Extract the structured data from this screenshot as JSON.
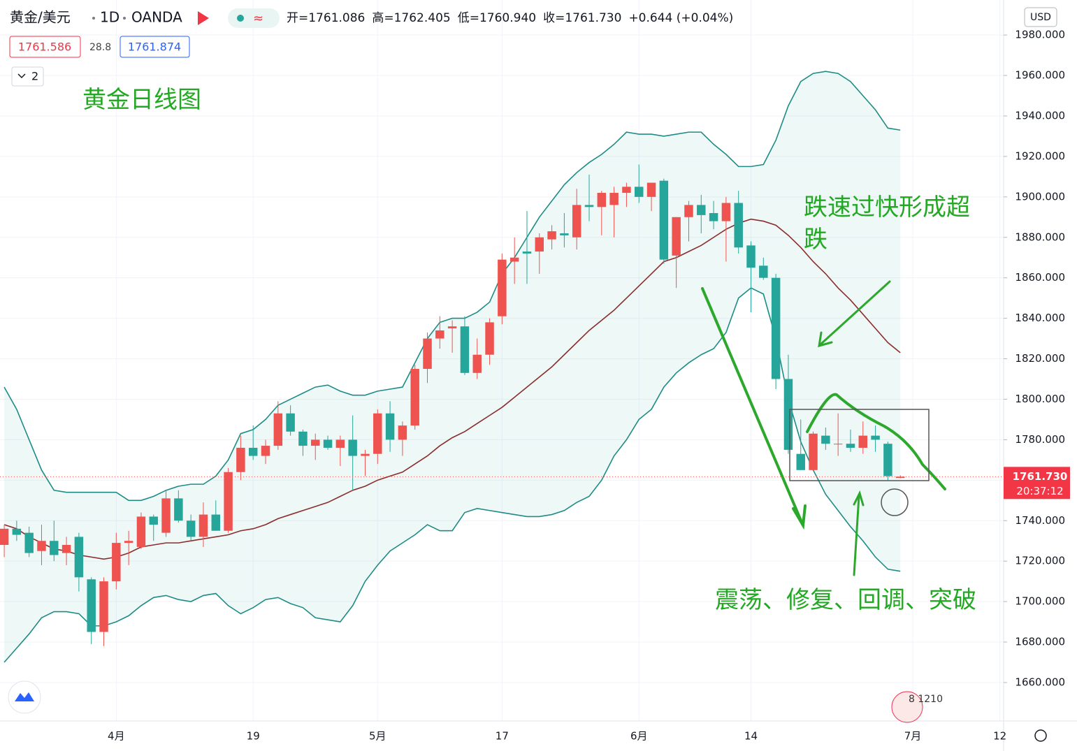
{
  "header": {
    "symbol": "黄金/美元",
    "interval": "1D",
    "exchange": "OANDA",
    "ohlc": [
      "开=1761.086",
      "高=1762.405",
      "低=1760.940",
      "收=1761.730"
    ],
    "change": "+0.644 (+0.04%)",
    "bid": "1761.586",
    "spread": "28.8",
    "ask": "1761.874",
    "indicators": "2",
    "currency": "USD",
    "footer": "8 1210"
  },
  "chart_data": {
    "type": "candlestick",
    "title": "黄金日线图",
    "annotations": [
      "跌速过快形成超跌",
      "震荡、修复、回调、突破"
    ],
    "up_color": "#ef5350",
    "down_color": "#26a69a",
    "open": [
      1728,
      1736,
      1734,
      1725,
      1730,
      1724,
      1732,
      1711,
      1685,
      1710,
      1729,
      1727,
      1742,
      1734,
      1751,
      1740,
      1732,
      1743,
      1735,
      1764,
      1776,
      1772,
      1777,
      1793,
      1784,
      1777,
      1780,
      1776,
      1780,
      1772,
      1773,
      1793,
      1780,
      1787,
      1815,
      1830,
      1835,
      1836,
      1813,
      1822,
      1841,
      1868,
      1873,
      1873,
      1879,
      1882,
      1880,
      1896,
      1895,
      1896,
      1902,
      1905,
      1900,
      1908,
      1871,
      1890,
      1896,
      1892,
      1888,
      1897,
      1876,
      1866,
      1860,
      1810,
      1773,
      1765,
      1782,
      1778,
      1778,
      1776,
      1782,
      1778,
      1761.086
    ],
    "high": [
      1738,
      1740,
      1737,
      1738,
      1740,
      1732,
      1734,
      1712,
      1712,
      1734,
      1735,
      1744,
      1743,
      1755,
      1755,
      1743,
      1749,
      1750,
      1766,
      1782,
      1787,
      1780,
      1799,
      1797,
      1785,
      1783,
      1782,
      1782,
      1792,
      1775,
      1795,
      1799,
      1789,
      1817,
      1833,
      1841,
      1839,
      1841,
      1830,
      1840,
      1872,
      1880,
      1893,
      1882,
      1886,
      1892,
      1904,
      1911,
      1903,
      1905,
      1907,
      1916,
      1907,
      1909,
      1890,
      1898,
      1901,
      1898,
      1900,
      1903,
      1878,
      1870,
      1862,
      1822,
      1790,
      1784,
      1786,
      1793,
      1785,
      1789,
      1787,
      1779,
      1762.405
    ],
    "low": [
      1722,
      1730,
      1722,
      1718,
      1720,
      1718,
      1705,
      1679,
      1678,
      1706,
      1718,
      1726,
      1730,
      1732,
      1739,
      1730,
      1727,
      1735,
      1734,
      1760,
      1770,
      1768,
      1775,
      1782,
      1772,
      1770,
      1775,
      1767,
      1755,
      1762,
      1768,
      1774,
      1772,
      1785,
      1808,
      1825,
      1823,
      1812,
      1810,
      1817,
      1837,
      1857,
      1857,
      1862,
      1874,
      1875,
      1874,
      1888,
      1881,
      1880,
      1895,
      1897,
      1893,
      1867,
      1855,
      1878,
      1882,
      1884,
      1868,
      1872,
      1843,
      1859,
      1805,
      1773,
      1765,
      1765,
      1775,
      1772,
      1774,
      1773,
      1774,
      1760,
      1760.94
    ],
    "close": [
      1736,
      1733,
      1724,
      1730,
      1723,
      1728,
      1712,
      1685,
      1710,
      1729,
      1730,
      1742,
      1738,
      1751,
      1740,
      1732,
      1743,
      1735,
      1764,
      1776,
      1772,
      1777,
      1793,
      1784,
      1777,
      1780,
      1776,
      1780,
      1772,
      1773,
      1793,
      1780,
      1787,
      1815,
      1830,
      1834,
      1836,
      1813,
      1822,
      1838,
      1869,
      1870,
      1872,
      1880,
      1883,
      1881,
      1896,
      1895,
      1902,
      1902,
      1905,
      1900,
      1907,
      1869,
      1890,
      1896,
      1891,
      1888,
      1897,
      1875,
      1865,
      1860,
      1810,
      1775,
      1765,
      1783,
      1778,
      1778,
      1776,
      1782,
      1780,
      1762,
      1761.73
    ],
    "series": [
      {
        "name": "upper",
        "color": "#1e8c86",
        "values": [
          1806,
          1795,
          1780,
          1765,
          1755,
          1754,
          1754,
          1754,
          1754,
          1754,
          1750,
          1750,
          1752,
          1755,
          1757,
          1758,
          1758,
          1762,
          1770,
          1783,
          1785,
          1790,
          1797,
          1800,
          1803,
          1806,
          1807,
          1804,
          1802,
          1802,
          1804,
          1805,
          1806,
          1818,
          1830,
          1838,
          1840,
          1840,
          1843,
          1848,
          1862,
          1870,
          1880,
          1890,
          1898,
          1906,
          1912,
          1917,
          1921,
          1926,
          1932,
          1931,
          1931,
          1930,
          1931,
          1932,
          1932,
          1926,
          1921,
          1915,
          1915,
          1916,
          1928,
          1945,
          1957,
          1961,
          1962,
          1961,
          1957,
          1950,
          1943,
          1934,
          1933
        ]
      },
      {
        "name": "middle",
        "color": "#8b2d2d",
        "values": [
          1738,
          1736,
          1732,
          1729,
          1726,
          1725,
          1723,
          1722,
          1721,
          1722,
          1724,
          1727,
          1728,
          1729,
          1729,
          1730,
          1731,
          1732,
          1733,
          1735,
          1736,
          1738,
          1741,
          1743,
          1745,
          1747,
          1749,
          1752,
          1755,
          1757,
          1760,
          1762,
          1764,
          1768,
          1772,
          1777,
          1781,
          1784,
          1788,
          1792,
          1796,
          1801,
          1806,
          1811,
          1816,
          1822,
          1828,
          1834,
          1839,
          1844,
          1850,
          1856,
          1862,
          1868,
          1870,
          1873,
          1876,
          1880,
          1884,
          1887,
          1889,
          1888,
          1886,
          1881,
          1875,
          1868,
          1862,
          1855,
          1849,
          1842,
          1835,
          1828,
          1823
        ]
      },
      {
        "name": "lower",
        "color": "#1e8c86",
        "values": [
          1670,
          1677,
          1684,
          1692,
          1695,
          1695,
          1694,
          1688,
          1688,
          1690,
          1693,
          1698,
          1702,
          1703,
          1701,
          1700,
          1703,
          1704,
          1698,
          1694,
          1697,
          1701,
          1702,
          1699,
          1697,
          1692,
          1691,
          1690,
          1698,
          1710,
          1718,
          1725,
          1729,
          1733,
          1738,
          1735,
          1735,
          1744,
          1746,
          1745,
          1744,
          1743,
          1742,
          1742,
          1743,
          1745,
          1749,
          1752,
          1760,
          1772,
          1780,
          1790,
          1795,
          1806,
          1813,
          1818,
          1822,
          1825,
          1833,
          1850,
          1855,
          1852,
          1830,
          1800,
          1779,
          1765,
          1753,
          1745,
          1737,
          1730,
          1722,
          1716,
          1715
        ]
      }
    ],
    "last_price": {
      "value": 1761.73,
      "label": "1761.730",
      "timer": "20:37:12"
    },
    "xlim": [
      -0.34,
      80.3
    ],
    "xticks": [
      {
        "value": 9,
        "label": "4月"
      },
      {
        "value": 20,
        "label": "19"
      },
      {
        "value": 30,
        "label": "5月"
      },
      {
        "value": 40,
        "label": "17"
      },
      {
        "value": 51,
        "label": "6月"
      },
      {
        "value": 60,
        "label": "14"
      },
      {
        "value": 73,
        "label": "7月"
      },
      {
        "value": 80,
        "label": "12"
      }
    ],
    "ylim": [
      1641,
      1997.3
    ],
    "yticks": [
      {
        "value": 1660,
        "label": "1660.000"
      },
      {
        "value": 1680,
        "label": "1680.000"
      },
      {
        "value": 1700,
        "label": "1700.000"
      },
      {
        "value": 1720,
        "label": "1720.000"
      },
      {
        "value": 1740,
        "label": "1740.000"
      },
      {
        "value": 1760,
        "label": "1760.000"
      },
      {
        "value": 1780,
        "label": "1780.000"
      },
      {
        "value": 1800,
        "label": "1800.000"
      },
      {
        "value": 1820,
        "label": "1820.000"
      },
      {
        "value": 1840,
        "label": "1840.000"
      },
      {
        "value": 1860,
        "label": "1860.000"
      },
      {
        "value": 1880,
        "label": "1880.000"
      },
      {
        "value": 1900,
        "label": "1900.000"
      },
      {
        "value": 1920,
        "label": "1920.000"
      },
      {
        "value": 1940,
        "label": "1940.000"
      },
      {
        "value": 1960,
        "label": "1960.000"
      },
      {
        "value": 1980,
        "label": "1980.000"
      }
    ],
    "grid": true
  }
}
